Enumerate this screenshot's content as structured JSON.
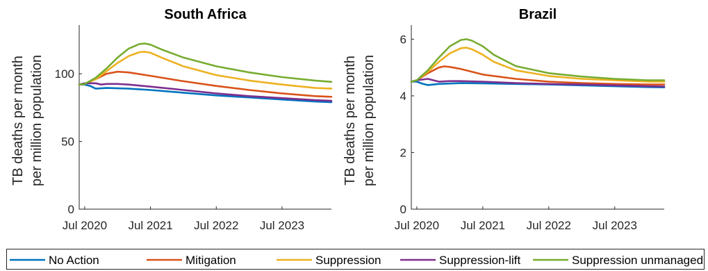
{
  "chart_data": [
    {
      "type": "line",
      "title": "South Africa",
      "ylabel_line1": "TB deaths per month",
      "ylabel_line2": "per million population",
      "xlabel": "",
      "x_ticks": [
        {
          "label": "Jul 2020",
          "t": 0
        },
        {
          "label": "Jul 2021",
          "t": 12
        },
        {
          "label": "Jul 2022",
          "t": 24
        },
        {
          "label": "Jul 2023",
          "t": 36
        }
      ],
      "xlim_months_from_jul2020": [
        -1,
        45
      ],
      "y_ticks": [
        0,
        50,
        100
      ],
      "ylim": [
        0,
        136
      ],
      "series": [
        {
          "name": "No Action",
          "color": "#0072BD",
          "points": [
            [
              -1,
              92
            ],
            [
              0,
              92
            ],
            [
              1,
              91
            ],
            [
              2,
              89
            ],
            [
              4,
              89.5
            ],
            [
              8,
              89
            ],
            [
              12,
              88
            ],
            [
              18,
              86
            ],
            [
              24,
              84
            ],
            [
              30,
              82.5
            ],
            [
              36,
              81
            ],
            [
              42,
              79.5
            ],
            [
              45,
              79
            ]
          ]
        },
        {
          "name": "Mitigation",
          "color": "#D95319",
          "points": [
            [
              -1,
              92
            ],
            [
              0,
              92.5
            ],
            [
              2,
              96
            ],
            [
              4,
              100
            ],
            [
              6,
              101.5
            ],
            [
              8,
              101
            ],
            [
              12,
              98.5
            ],
            [
              18,
              94.5
            ],
            [
              24,
              91
            ],
            [
              30,
              88
            ],
            [
              36,
              85.5
            ],
            [
              42,
              83.5
            ],
            [
              45,
              83
            ]
          ]
        },
        {
          "name": "Suppression",
          "color": "#EDB120",
          "points": [
            [
              -1,
              92
            ],
            [
              0,
              92.5
            ],
            [
              2,
              96
            ],
            [
              4,
              102
            ],
            [
              6,
              108
            ],
            [
              8,
              113
            ],
            [
              10,
              116
            ],
            [
              11,
              116.2
            ],
            [
              12,
              115.5
            ],
            [
              14,
              112
            ],
            [
              18,
              105.5
            ],
            [
              24,
              99
            ],
            [
              30,
              95
            ],
            [
              36,
              92
            ],
            [
              42,
              89.5
            ],
            [
              45,
              89
            ]
          ]
        },
        {
          "name": "Suppression-lift",
          "color": "#7E2F8E",
          "points": [
            [
              -1,
              92
            ],
            [
              0,
              93
            ],
            [
              2,
              93
            ],
            [
              3,
              92
            ],
            [
              4,
              92.5
            ],
            [
              6,
              92.5
            ],
            [
              8,
              92
            ],
            [
              12,
              90.5
            ],
            [
              18,
              88
            ],
            [
              24,
              85.5
            ],
            [
              30,
              83.5
            ],
            [
              36,
              82
            ],
            [
              42,
              80.5
            ],
            [
              45,
              80
            ]
          ]
        },
        {
          "name": "Suppression unmanaged",
          "color": "#77AC30",
          "points": [
            [
              -1,
              92
            ],
            [
              0,
              92.5
            ],
            [
              2,
              97
            ],
            [
              4,
              104
            ],
            [
              6,
              112
            ],
            [
              8,
              118.5
            ],
            [
              10,
              122
            ],
            [
              11,
              122.3
            ],
            [
              12,
              121.5
            ],
            [
              14,
              118
            ],
            [
              18,
              112
            ],
            [
              24,
              105.5
            ],
            [
              30,
              101
            ],
            [
              36,
              97.5
            ],
            [
              42,
              95
            ],
            [
              45,
              94
            ]
          ]
        }
      ]
    },
    {
      "type": "line",
      "title": "Brazil",
      "ylabel_line1": "TB deaths per month",
      "ylabel_line2": "per million population",
      "xlabel": "",
      "x_ticks": [
        {
          "label": "Jul 2020",
          "t": 0
        },
        {
          "label": "Jul 2021",
          "t": 12
        },
        {
          "label": "Jul 2022",
          "t": 24
        },
        {
          "label": "Jul 2023",
          "t": 36
        }
      ],
      "xlim_months_from_jul2020": [
        -1,
        45
      ],
      "y_ticks": [
        0,
        2,
        4,
        6
      ],
      "ylim": [
        0,
        6.5
      ],
      "series": [
        {
          "name": "No Action",
          "color": "#0072BD",
          "points": [
            [
              -1,
              4.5
            ],
            [
              0,
              4.5
            ],
            [
              1,
              4.43
            ],
            [
              2,
              4.38
            ],
            [
              4,
              4.42
            ],
            [
              8,
              4.45
            ],
            [
              12,
              4.44
            ],
            [
              18,
              4.42
            ],
            [
              24,
              4.4
            ],
            [
              30,
              4.37
            ],
            [
              36,
              4.34
            ],
            [
              42,
              4.31
            ],
            [
              45,
              4.3
            ]
          ]
        },
        {
          "name": "Mitigation",
          "color": "#D95319",
          "points": [
            [
              -1,
              4.5
            ],
            [
              0,
              4.55
            ],
            [
              2,
              4.8
            ],
            [
              4,
              5
            ],
            [
              5,
              5.04
            ],
            [
              6,
              5.02
            ],
            [
              8,
              4.95
            ],
            [
              12,
              4.75
            ],
            [
              18,
              4.6
            ],
            [
              24,
              4.5
            ],
            [
              30,
              4.45
            ],
            [
              36,
              4.42
            ],
            [
              42,
              4.4
            ],
            [
              45,
              4.4
            ]
          ]
        },
        {
          "name": "Suppression",
          "color": "#EDB120",
          "points": [
            [
              -1,
              4.5
            ],
            [
              0,
              4.55
            ],
            [
              2,
              4.85
            ],
            [
              4,
              5.2
            ],
            [
              6,
              5.5
            ],
            [
              8,
              5.68
            ],
            [
              9,
              5.7
            ],
            [
              10,
              5.65
            ],
            [
              12,
              5.45
            ],
            [
              14,
              5.2
            ],
            [
              18,
              4.9
            ],
            [
              24,
              4.7
            ],
            [
              30,
              4.6
            ],
            [
              36,
              4.55
            ],
            [
              42,
              4.5
            ],
            [
              45,
              4.5
            ]
          ]
        },
        {
          "name": "Suppression-lift",
          "color": "#7E2F8E",
          "points": [
            [
              -1,
              4.5
            ],
            [
              0,
              4.55
            ],
            [
              2,
              4.6
            ],
            [
              3,
              4.55
            ],
            [
              4,
              4.5
            ],
            [
              6,
              4.52
            ],
            [
              8,
              4.52
            ],
            [
              12,
              4.5
            ],
            [
              18,
              4.45
            ],
            [
              24,
              4.42
            ],
            [
              30,
              4.4
            ],
            [
              36,
              4.37
            ],
            [
              42,
              4.34
            ],
            [
              45,
              4.33
            ]
          ]
        },
        {
          "name": "Suppression unmanaged",
          "color": "#77AC30",
          "points": [
            [
              -1,
              4.5
            ],
            [
              0,
              4.55
            ],
            [
              2,
              4.9
            ],
            [
              4,
              5.35
            ],
            [
              6,
              5.75
            ],
            [
              8,
              5.97
            ],
            [
              9,
              6
            ],
            [
              10,
              5.95
            ],
            [
              12,
              5.75
            ],
            [
              14,
              5.45
            ],
            [
              18,
              5.05
            ],
            [
              24,
              4.8
            ],
            [
              30,
              4.68
            ],
            [
              36,
              4.6
            ],
            [
              42,
              4.55
            ],
            [
              45,
              4.55
            ]
          ]
        }
      ]
    }
  ],
  "legend": {
    "placement": "bottom",
    "entries": [
      {
        "label": "No Action",
        "color": "#0072BD"
      },
      {
        "label": "Mitigation",
        "color": "#D95319"
      },
      {
        "label": "Suppression",
        "color": "#EDB120"
      },
      {
        "label": "Suppression-lift",
        "color": "#7E2F8E"
      },
      {
        "label": "Suppression unmanaged",
        "color": "#77AC30"
      }
    ]
  }
}
